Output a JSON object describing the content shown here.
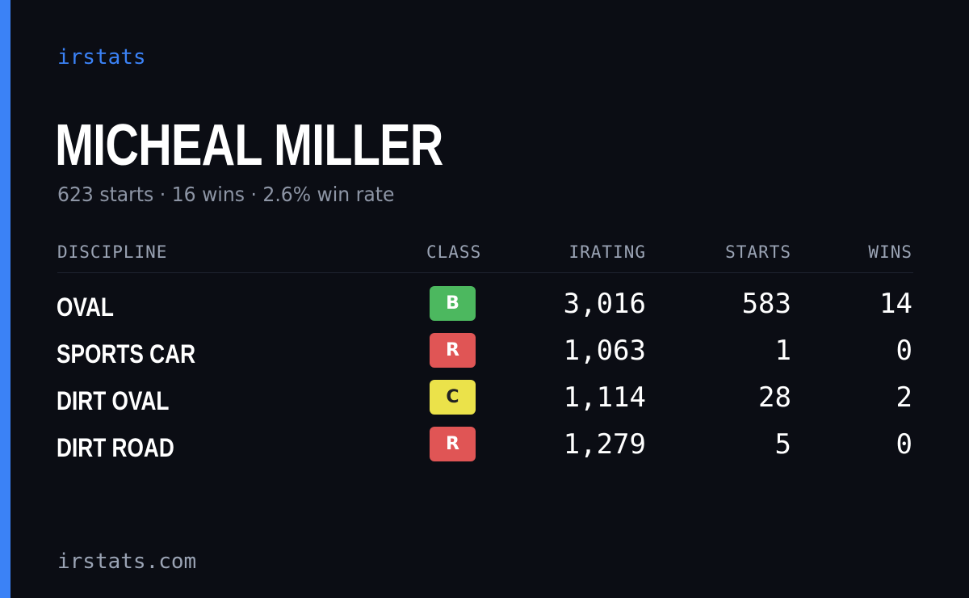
{
  "brand": "irstats",
  "driver": {
    "name": "MICHEAL MILLER",
    "summary": "623 starts · 16 wins · 2.6% win rate"
  },
  "table": {
    "headers": {
      "discipline": "DISCIPLINE",
      "class": "CLASS",
      "irating": "IRATING",
      "starts": "STARTS",
      "wins": "WINS"
    },
    "rows": [
      {
        "discipline": "OVAL",
        "class": "B",
        "class_color": "#4cb85f",
        "class_text_color": "#ffffff",
        "irating": "3,016",
        "starts": "583",
        "wins": "14"
      },
      {
        "discipline": "SPORTS CAR",
        "class": "R",
        "class_color": "#e05555",
        "class_text_color": "#ffffff",
        "irating": "1,063",
        "starts": "1",
        "wins": "0"
      },
      {
        "discipline": "DIRT OVAL",
        "class": "C",
        "class_color": "#ebe24a",
        "class_text_color": "#222222",
        "irating": "1,114",
        "starts": "28",
        "wins": "2"
      },
      {
        "discipline": "DIRT ROAD",
        "class": "R",
        "class_color": "#e05555",
        "class_text_color": "#ffffff",
        "irating": "1,279",
        "starts": "5",
        "wins": "0"
      }
    ]
  },
  "footer": "irstats.com",
  "colors": {
    "accent": "#3b82f6",
    "background": "#0b0d14",
    "muted_text": "#8d95a5"
  }
}
